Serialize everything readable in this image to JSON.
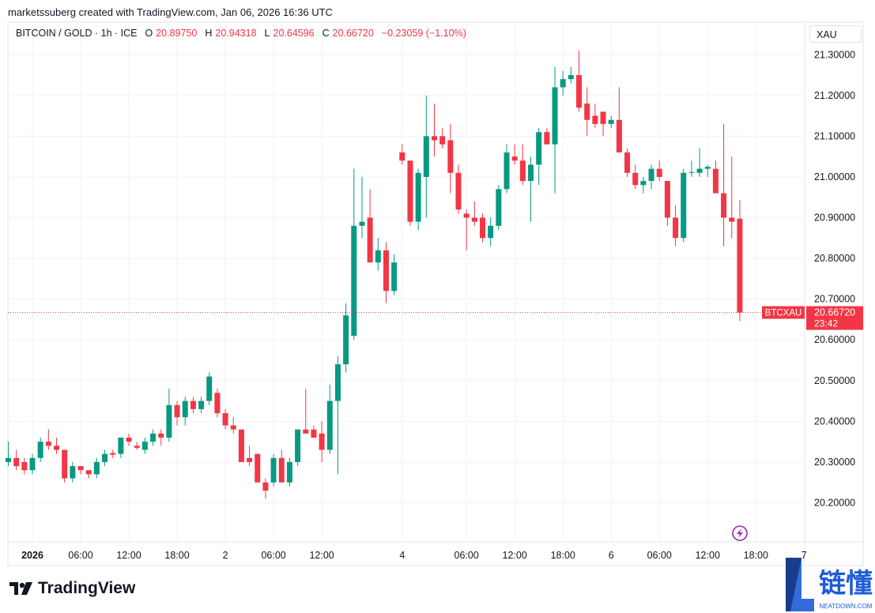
{
  "header": {
    "credit": "marketssuberg created with TradingView.com, Jan 06, 2026 16:36 UTC",
    "symbol": "BITCOIN / GOLD · 1h · ICE",
    "ohlc": [
      {
        "label": "O",
        "value": "20.89750"
      },
      {
        "label": "H",
        "value": "20.94318"
      },
      {
        "label": "L",
        "value": "20.64596"
      },
      {
        "label": "C",
        "value": "20.66720"
      }
    ],
    "change": "−0.23059 (−1.10%)",
    "currency": "XAU"
  },
  "chart_data": {
    "type": "candlestick",
    "up_color": "#089981",
    "down_color": "#f23645",
    "open": [
      20.3,
      20.31,
      20.3,
      20.28,
      20.31,
      20.35,
      20.34,
      20.33,
      20.26,
      20.29,
      20.28,
      20.27,
      20.3,
      20.322,
      20.32,
      20.36,
      20.34,
      20.33,
      20.35,
      20.37,
      20.36,
      20.44,
      20.41,
      20.45,
      20.43,
      20.45,
      20.47,
      20.42,
      20.39,
      20.38,
      20.31,
      20.32,
      20.25,
      20.25,
      20.31,
      20.25,
      20.3,
      20.38,
      20.38,
      20.37,
      20.33,
      20.45,
      20.54,
      20.61,
      20.88,
      20.9,
      20.79,
      20.82,
      20.72,
      21.06,
      21.04,
      20.89,
      21.0,
      21.1,
      21.1,
      21.09,
      21.01,
      20.91,
      20.9,
      20.9,
      20.85,
      20.88,
      20.97,
      21.05,
      21.04,
      20.99,
      21.03,
      21.11,
      21.08,
      21.22,
      21.24,
      21.25,
      21.18,
      21.15,
      21.16,
      21.13,
      21.14,
      21.06,
      21.01,
      20.98,
      20.99,
      21.02,
      20.99,
      20.9,
      20.85,
      21.01,
      21.01,
      21.02,
      21.02,
      20.96,
      20.9,
      20.8975
    ],
    "high": [
      20.35,
      20.33,
      20.31,
      20.32,
      20.36,
      20.38,
      20.36,
      20.33,
      20.3,
      20.29,
      20.28,
      20.31,
      20.33,
      20.33,
      20.36,
      20.37,
      20.35,
      20.36,
      20.38,
      20.38,
      20.48,
      20.45,
      20.46,
      20.46,
      20.46,
      20.52,
      20.48,
      20.43,
      20.41,
      20.38,
      20.34,
      20.32,
      20.26,
      20.32,
      20.33,
      20.31,
      20.38,
      20.48,
      20.39,
      20.4,
      20.49,
      20.56,
      20.69,
      21.02,
      21.0,
      20.97,
      20.85,
      20.84,
      20.81,
      21.08,
      21.04,
      21.02,
      21.2,
      21.18,
      21.12,
      21.13,
      21.03,
      20.92,
      20.94,
      20.91,
      20.9,
      20.98,
      21.08,
      21.08,
      21.08,
      21.05,
      21.12,
      21.12,
      21.27,
      21.26,
      21.27,
      21.31,
      21.22,
      21.18,
      21.16,
      21.15,
      21.22,
      21.07,
      21.03,
      21.0,
      21.03,
      21.04,
      20.99,
      20.93,
      21.02,
      21.04,
      21.07,
      21.03,
      21.04,
      21.13,
      21.05,
      20.94318
    ],
    "low": [
      20.29,
      20.28,
      20.27,
      20.27,
      20.3,
      20.33,
      20.32,
      20.25,
      20.25,
      20.27,
      20.26,
      20.26,
      20.29,
      20.31,
      20.31,
      20.34,
      20.33,
      20.32,
      20.34,
      20.34,
      20.35,
      20.39,
      20.39,
      20.42,
      20.42,
      20.44,
      20.41,
      20.38,
      20.37,
      20.3,
      20.29,
      20.25,
      20.21,
      20.24,
      20.25,
      20.24,
      20.29,
      20.37,
      20.36,
      20.3,
      20.32,
      20.27,
      20.52,
      20.6,
      20.85,
      20.79,
      20.77,
      20.69,
      20.71,
      21.03,
      20.88,
      20.87,
      20.9,
      21.05,
      21.07,
      20.96,
      20.91,
      20.82,
      20.88,
      20.84,
      20.83,
      20.87,
      20.96,
      21.03,
      20.98,
      20.89,
      20.98,
      21.08,
      20.96,
      21.2,
      21.23,
      21.16,
      21.1,
      21.12,
      21.1,
      21.12,
      21.06,
      21.0,
      20.97,
      20.96,
      20.97,
      20.99,
      20.88,
      20.83,
      20.84,
      21.0,
      21.0,
      21.0,
      20.96,
      20.83,
      20.85,
      20.64596
    ],
    "close": [
      20.31,
      20.29,
      20.28,
      20.31,
      20.35,
      20.34,
      20.33,
      20.26,
      20.29,
      20.28,
      20.27,
      20.3,
      20.32,
      20.318,
      20.36,
      20.35,
      20.335,
      20.35,
      20.37,
      20.36,
      20.44,
      20.41,
      20.45,
      20.43,
      20.45,
      20.51,
      20.42,
      20.39,
      20.38,
      20.3,
      20.3,
      20.25,
      20.23,
      20.31,
      20.25,
      20.3,
      20.38,
      20.37,
      20.36,
      20.33,
      20.45,
      20.54,
      20.66,
      20.88,
      20.89,
      20.79,
      20.82,
      20.72,
      20.79,
      21.04,
      20.89,
      21.01,
      21.1,
      21.09,
      21.08,
      21.01,
      20.92,
      20.9,
      20.89,
      20.85,
      20.88,
      20.97,
      21.06,
      21.04,
      20.99,
      21.03,
      21.11,
      21.08,
      21.22,
      21.24,
      21.25,
      21.17,
      21.14,
      21.13,
      21.13,
      21.14,
      21.06,
      21.01,
      20.98,
      20.99,
      21.02,
      21.0,
      20.9,
      20.85,
      21.01,
      21.012,
      21.02,
      21.025,
      20.96,
      20.9,
      20.89,
      20.6672
    ],
    "xlim": [
      -0.05,
      99.07
    ],
    "xticks": [
      {
        "value": 3,
        "label": "2026"
      },
      {
        "value": 9,
        "label": "06:00"
      },
      {
        "value": 15,
        "label": "12:00"
      },
      {
        "value": 21,
        "label": "18:00"
      },
      {
        "value": 27,
        "label": "2"
      },
      {
        "value": 33,
        "label": "06:00"
      },
      {
        "value": 39,
        "label": "12:00"
      },
      {
        "value": 49,
        "label": "4"
      },
      {
        "value": 57,
        "label": "06:00"
      },
      {
        "value": 63,
        "label": "12:00"
      },
      {
        "value": 69,
        "label": "18:00"
      },
      {
        "value": 75,
        "label": "6"
      },
      {
        "value": 81,
        "label": "06:00"
      },
      {
        "value": 87,
        "label": "12:00"
      },
      {
        "value": 93,
        "label": "18:00"
      },
      {
        "value": 99,
        "label": "7"
      }
    ],
    "ylim": [
      20.104,
      21.38
    ],
    "yticks": [
      {
        "value": 20.2,
        "label": "20.20000"
      },
      {
        "value": 20.3,
        "label": "20.30000"
      },
      {
        "value": 20.4,
        "label": "20.40000"
      },
      {
        "value": 20.5,
        "label": "20.50000"
      },
      {
        "value": 20.6,
        "label": "20.60000"
      },
      {
        "value": 20.7,
        "label": "20.70000"
      },
      {
        "value": 20.8,
        "label": "20.80000"
      },
      {
        "value": 20.9,
        "label": "20.90000"
      },
      {
        "value": 21.0,
        "label": "21.00000"
      },
      {
        "value": 21.1,
        "label": "21.10000"
      },
      {
        "value": 21.2,
        "label": "21.20000"
      },
      {
        "value": 21.3,
        "label": "21.30000"
      }
    ],
    "grid": true,
    "price_tag": {
      "symbol": "BTCXAU",
      "price": "20.66720",
      "countdown": "23:42"
    }
  },
  "footer": {
    "logo": "TradingView"
  },
  "watermark": {
    "text": "链懂",
    "site": "NEATDOWN.COM"
  }
}
